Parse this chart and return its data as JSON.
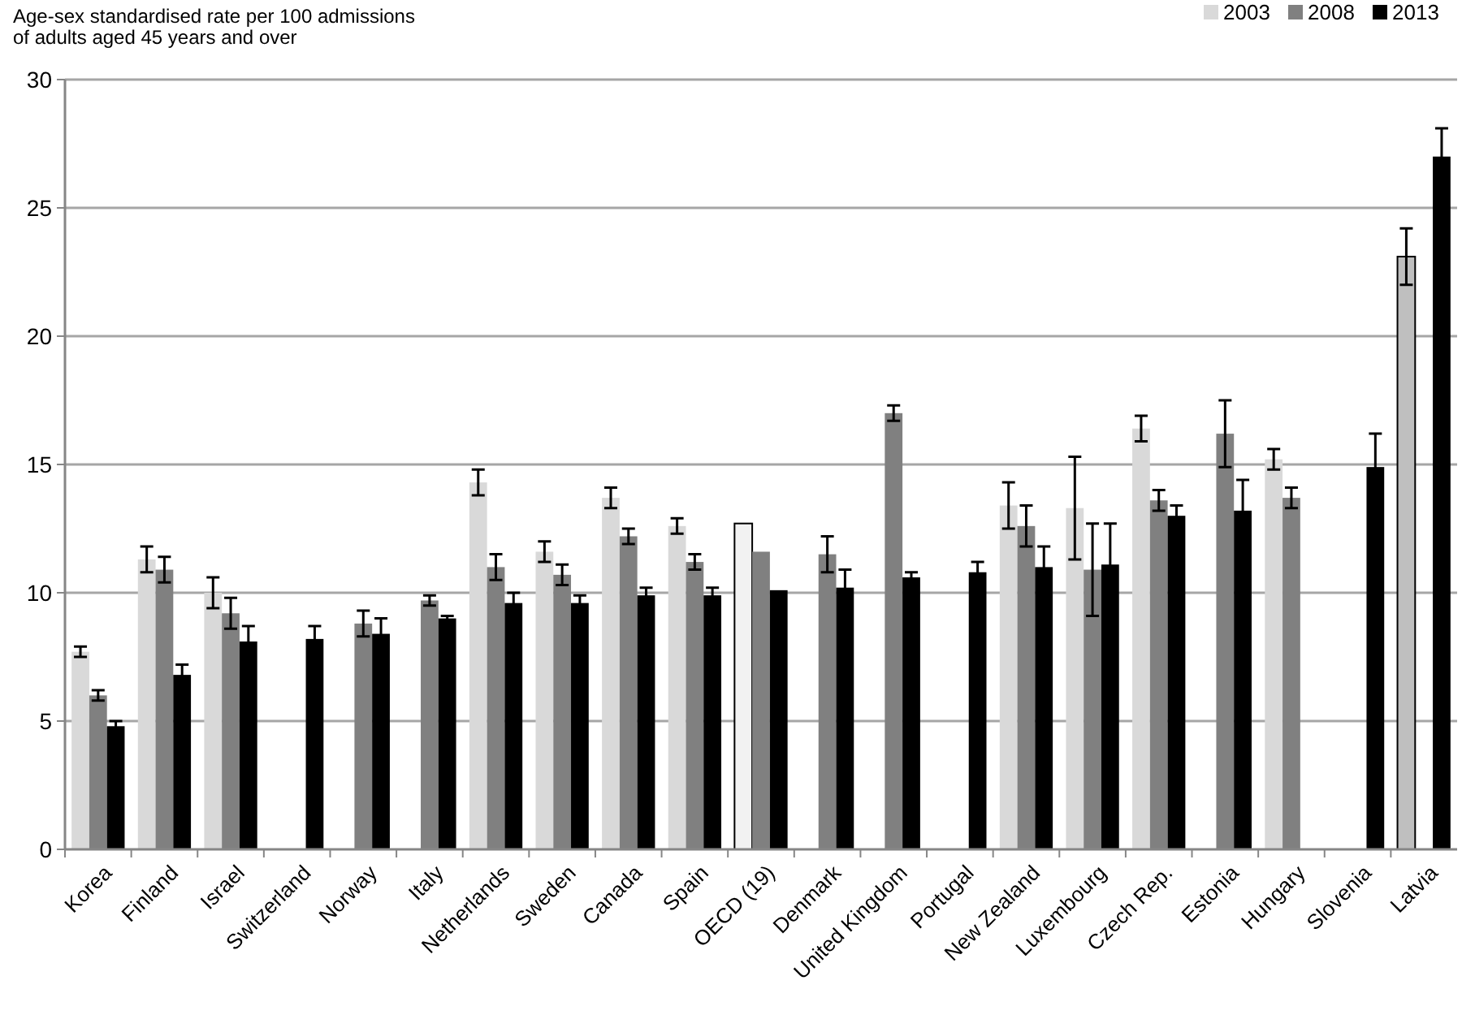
{
  "chart_data": {
    "type": "bar",
    "ylabel": "Age-sex standardised rate  per 100 admissions\nof adults aged 45 years and over",
    "categories": [
      "Korea",
      "Finland",
      "Israel",
      "Switzerland",
      "Norway",
      "Italy",
      "Netherlands",
      "Sweden",
      "Canada",
      "Spain",
      "OECD (19)",
      "Denmark",
      "United Kingdom",
      "Portugal",
      "New Zealand",
      "Luxembourg",
      "Czech Rep.",
      "Estonia",
      "Hungary",
      "Slovenia",
      "Latvia"
    ],
    "series": [
      {
        "name": "2003",
        "color": "#d9d9d9",
        "colors": [
          "#d9d9d9",
          "#d9d9d9",
          "#d9d9d9",
          null,
          null,
          null,
          "#d9d9d9",
          "#d9d9d9",
          "#d9d9d9",
          "#d9d9d9",
          "#f2f2f2",
          null,
          null,
          null,
          "#d9d9d9",
          "#d9d9d9",
          "#d9d9d9",
          null,
          "#d9d9d9",
          null,
          "#bfbfbf"
        ],
        "values": [
          7.7,
          11.3,
          10.0,
          null,
          null,
          null,
          14.3,
          11.6,
          13.7,
          12.6,
          12.7,
          null,
          null,
          null,
          13.4,
          13.3,
          16.4,
          null,
          15.2,
          null,
          23.1
        ],
        "errors": [
          0.2,
          0.5,
          0.6,
          null,
          null,
          null,
          0.5,
          0.4,
          0.4,
          0.3,
          null,
          null,
          null,
          null,
          0.9,
          2.0,
          0.5,
          null,
          0.4,
          null,
          1.1
        ]
      },
      {
        "name": "2008",
        "color": "#808080",
        "values": [
          6.0,
          10.9,
          9.2,
          null,
          8.8,
          9.7,
          11.0,
          10.7,
          12.2,
          11.2,
          11.6,
          11.5,
          17.0,
          null,
          12.6,
          10.9,
          13.6,
          16.2,
          13.7,
          null,
          null
        ],
        "errors": [
          0.2,
          0.5,
          0.6,
          null,
          0.5,
          0.2,
          0.5,
          0.4,
          0.3,
          0.3,
          null,
          0.7,
          0.3,
          null,
          0.8,
          1.8,
          0.4,
          1.3,
          0.4,
          null,
          null
        ]
      },
      {
        "name": "2013",
        "color": "#000000",
        "values": [
          4.8,
          6.8,
          8.1,
          8.2,
          8.4,
          9.0,
          9.6,
          9.6,
          9.9,
          9.9,
          10.1,
          10.2,
          10.6,
          10.8,
          11.0,
          11.1,
          13.0,
          13.2,
          null,
          14.9,
          27.0
        ],
        "errors": [
          0.2,
          0.4,
          0.6,
          0.5,
          0.6,
          0.1,
          0.4,
          0.3,
          0.3,
          0.3,
          null,
          0.7,
          0.2,
          0.4,
          0.8,
          1.6,
          0.4,
          1.2,
          null,
          1.3,
          1.1
        ]
      }
    ],
    "ylim": [
      0,
      30
    ],
    "yticks": [
      0,
      5,
      10,
      15,
      20,
      25,
      30
    ],
    "grid": "y",
    "legend": "top right"
  }
}
